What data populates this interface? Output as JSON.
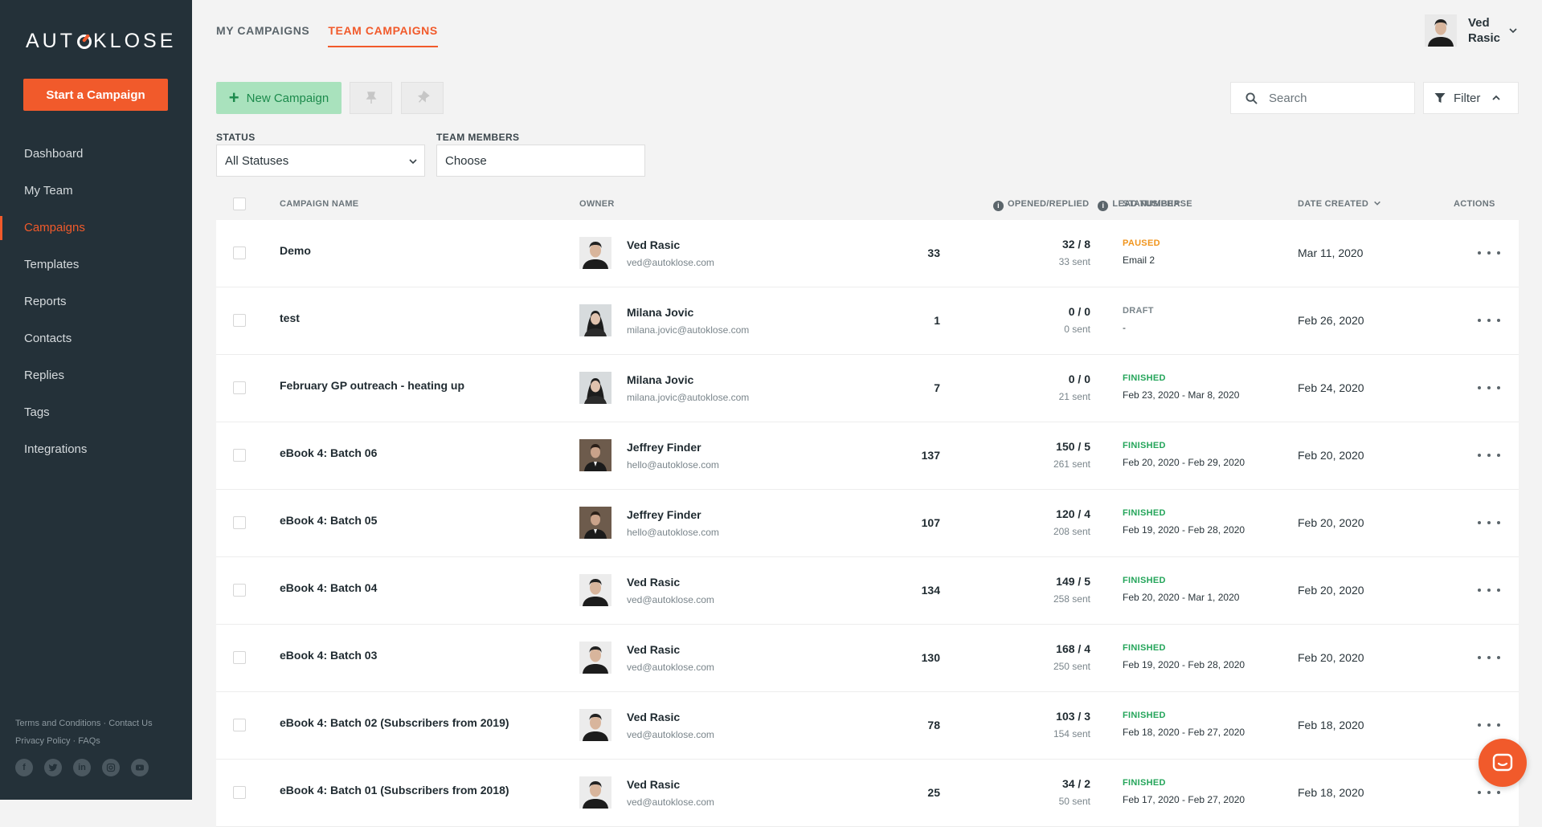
{
  "brand": {
    "logo_text_pre": "AUT",
    "logo_text_post": "KLOSE",
    "accent": "#f15a2b",
    "sidebar_bg": "#243139"
  },
  "sidebar": {
    "start_label": "Start a Campaign",
    "items": [
      {
        "label": "Dashboard",
        "active": false
      },
      {
        "label": "My Team",
        "active": false
      },
      {
        "label": "Campaigns",
        "active": true
      },
      {
        "label": "Templates",
        "active": false
      },
      {
        "label": "Reports",
        "active": false
      },
      {
        "label": "Contacts",
        "active": false
      },
      {
        "label": "Replies",
        "active": false
      },
      {
        "label": "Tags",
        "active": false
      },
      {
        "label": "Integrations",
        "active": false
      }
    ],
    "footer": {
      "terms": "Terms and Conditions",
      "contact": "Contact Us",
      "privacy": "Privacy Policy",
      "faqs": "FAQs",
      "separator": "·"
    },
    "socials": [
      "facebook-icon",
      "twitter-icon",
      "linkedin-icon",
      "instagram-icon",
      "youtube-icon"
    ]
  },
  "tabs": [
    {
      "label": "MY CAMPAIGNS",
      "active": false
    },
    {
      "label": "TEAM CAMPAIGNS",
      "active": true
    }
  ],
  "user": {
    "first": "Ved",
    "last": "Rasic"
  },
  "toolbar": {
    "new_campaign": "New Campaign",
    "search_placeholder": "Search",
    "filter_label": "Filter"
  },
  "filters": {
    "status_label": "STATUS",
    "status_value": "All Statuses",
    "team_label": "TEAM MEMBERS",
    "team_value": "Choose"
  },
  "table": {
    "headers": {
      "name": "CAMPAIGN NAME",
      "owner": "OWNER",
      "lead": "LEAD NUMBER",
      "opened": "OPENED/REPLIED",
      "status": "STATUS/PHASE",
      "date": "DATE CREATED",
      "actions": "ACTIONS"
    },
    "rows": [
      {
        "name": "Demo",
        "owner": "Ved Rasic",
        "email": "ved@autoklose.com",
        "avatar": "ved",
        "leads": "33",
        "opened": "32 / 8",
        "sent": "33 sent",
        "status": "PAUSED",
        "status_kind": "paused",
        "phase": "Email 2",
        "date": "Mar 11, 2020"
      },
      {
        "name": "test",
        "owner": "Milana Jovic",
        "email": "milana.jovic@autoklose.com",
        "avatar": "milana",
        "leads": "1",
        "opened": "0 / 0",
        "sent": "0 sent",
        "status": "DRAFT",
        "status_kind": "draft",
        "phase": "-",
        "date": "Feb 26, 2020"
      },
      {
        "name": "February GP outreach - heating up",
        "owner": "Milana Jovic",
        "email": "milana.jovic@autoklose.com",
        "avatar": "milana",
        "leads": "7",
        "opened": "0 / 0",
        "sent": "21 sent",
        "status": "FINISHED",
        "status_kind": "finished",
        "phase": "Feb 23, 2020 - Mar 8, 2020",
        "date": "Feb 24, 2020"
      },
      {
        "name": "eBook 4: Batch 06",
        "owner": "Jeffrey Finder",
        "email": "hello@autoklose.com",
        "avatar": "jeffrey",
        "leads": "137",
        "opened": "150 / 5",
        "sent": "261 sent",
        "status": "FINISHED",
        "status_kind": "finished",
        "phase": "Feb 20, 2020 - Feb 29, 2020",
        "date": "Feb 20, 2020"
      },
      {
        "name": "eBook 4: Batch 05",
        "owner": "Jeffrey Finder",
        "email": "hello@autoklose.com",
        "avatar": "jeffrey",
        "leads": "107",
        "opened": "120 / 4",
        "sent": "208 sent",
        "status": "FINISHED",
        "status_kind": "finished",
        "phase": "Feb 19, 2020 - Feb 28, 2020",
        "date": "Feb 20, 2020"
      },
      {
        "name": "eBook 4: Batch 04",
        "owner": "Ved Rasic",
        "email": "ved@autoklose.com",
        "avatar": "ved",
        "leads": "134",
        "opened": "149 / 5",
        "sent": "258 sent",
        "status": "FINISHED",
        "status_kind": "finished",
        "phase": "Feb 20, 2020 - Mar 1, 2020",
        "date": "Feb 20, 2020"
      },
      {
        "name": "eBook 4: Batch 03",
        "owner": "Ved Rasic",
        "email": "ved@autoklose.com",
        "avatar": "ved",
        "leads": "130",
        "opened": "168 / 4",
        "sent": "250 sent",
        "status": "FINISHED",
        "status_kind": "finished",
        "phase": "Feb 19, 2020 - Feb 28, 2020",
        "date": "Feb 20, 2020"
      },
      {
        "name": "eBook 4: Batch 02 (Subscribers from 2019)",
        "owner": "Ved Rasic",
        "email": "ved@autoklose.com",
        "avatar": "ved",
        "leads": "78",
        "opened": "103 / 3",
        "sent": "154 sent",
        "status": "FINISHED",
        "status_kind": "finished",
        "phase": "Feb 18, 2020 - Feb 27, 2020",
        "date": "Feb 18, 2020"
      },
      {
        "name": "eBook 4: Batch 01 (Subscribers from 2018)",
        "owner": "Ved Rasic",
        "email": "ved@autoklose.com",
        "avatar": "ved",
        "leads": "25",
        "opened": "34 / 2",
        "sent": "50 sent",
        "status": "FINISHED",
        "status_kind": "finished",
        "phase": "Feb 17, 2020 - Feb 27, 2020",
        "date": "Feb 18, 2020"
      }
    ]
  }
}
